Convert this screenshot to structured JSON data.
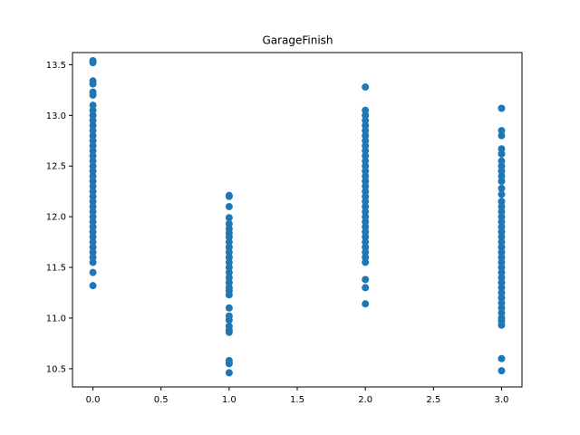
{
  "chart_data": {
    "type": "scatter",
    "title": "GarageFinish",
    "xlabel": "",
    "ylabel": "",
    "xlim": [
      -0.15,
      3.15
    ],
    "ylim": [
      10.32,
      13.62
    ],
    "x_ticks": [
      0.0,
      0.5,
      1.0,
      1.5,
      2.0,
      2.5,
      3.0
    ],
    "x_tick_labels": [
      "0.0",
      "0.5",
      "1.0",
      "1.5",
      "2.0",
      "2.5",
      "3.0"
    ],
    "y_ticks": [
      10.5,
      11.0,
      11.5,
      12.0,
      12.5,
      13.0,
      13.5
    ],
    "y_tick_labels": [
      "10.5",
      "11.0",
      "11.5",
      "12.0",
      "12.5",
      "13.0",
      "13.5"
    ],
    "grid": false,
    "marker_color": "#1f77b4",
    "series": [
      {
        "name": "GarageFinish",
        "points": [
          {
            "x": 0,
            "y": 13.54
          },
          {
            "x": 0,
            "y": 13.52
          },
          {
            "x": 0,
            "y": 13.34
          },
          {
            "x": 0,
            "y": 13.31
          },
          {
            "x": 0,
            "y": 13.23
          },
          {
            "x": 0,
            "y": 13.2
          },
          {
            "x": 0,
            "y": 13.1
          },
          {
            "x": 0,
            "y": 13.05
          },
          {
            "x": 0,
            "y": 13.0
          },
          {
            "x": 0,
            "y": 12.95
          },
          {
            "x": 0,
            "y": 12.9
          },
          {
            "x": 0,
            "y": 12.85
          },
          {
            "x": 0,
            "y": 12.8
          },
          {
            "x": 0,
            "y": 12.75
          },
          {
            "x": 0,
            "y": 12.7
          },
          {
            "x": 0,
            "y": 12.65
          },
          {
            "x": 0,
            "y": 12.6
          },
          {
            "x": 0,
            "y": 12.55
          },
          {
            "x": 0,
            "y": 12.5
          },
          {
            "x": 0,
            "y": 12.45
          },
          {
            "x": 0,
            "y": 12.4
          },
          {
            "x": 0,
            "y": 12.35
          },
          {
            "x": 0,
            "y": 12.3
          },
          {
            "x": 0,
            "y": 12.25
          },
          {
            "x": 0,
            "y": 12.2
          },
          {
            "x": 0,
            "y": 12.15
          },
          {
            "x": 0,
            "y": 12.1
          },
          {
            "x": 0,
            "y": 12.05
          },
          {
            "x": 0,
            "y": 12.0
          },
          {
            "x": 0,
            "y": 11.95
          },
          {
            "x": 0,
            "y": 11.9
          },
          {
            "x": 0,
            "y": 11.85
          },
          {
            "x": 0,
            "y": 11.8
          },
          {
            "x": 0,
            "y": 11.75
          },
          {
            "x": 0,
            "y": 11.7
          },
          {
            "x": 0,
            "y": 11.65
          },
          {
            "x": 0,
            "y": 11.6
          },
          {
            "x": 0,
            "y": 11.55
          },
          {
            "x": 0,
            "y": 11.45
          },
          {
            "x": 0,
            "y": 11.32
          },
          {
            "x": 1,
            "y": 12.21
          },
          {
            "x": 1,
            "y": 12.2
          },
          {
            "x": 1,
            "y": 12.1
          },
          {
            "x": 1,
            "y": 11.99
          },
          {
            "x": 1,
            "y": 11.93
          },
          {
            "x": 1,
            "y": 11.88
          },
          {
            "x": 1,
            "y": 11.84
          },
          {
            "x": 1,
            "y": 11.8
          },
          {
            "x": 1,
            "y": 11.75
          },
          {
            "x": 1,
            "y": 11.7
          },
          {
            "x": 1,
            "y": 11.65
          },
          {
            "x": 1,
            "y": 11.6
          },
          {
            "x": 1,
            "y": 11.55
          },
          {
            "x": 1,
            "y": 11.5
          },
          {
            "x": 1,
            "y": 11.45
          },
          {
            "x": 1,
            "y": 11.4
          },
          {
            "x": 1,
            "y": 11.35
          },
          {
            "x": 1,
            "y": 11.3
          },
          {
            "x": 1,
            "y": 11.27
          },
          {
            "x": 1,
            "y": 11.23
          },
          {
            "x": 1,
            "y": 11.1
          },
          {
            "x": 1,
            "y": 11.02
          },
          {
            "x": 1,
            "y": 10.98
          },
          {
            "x": 1,
            "y": 10.92
          },
          {
            "x": 1,
            "y": 10.88
          },
          {
            "x": 1,
            "y": 10.86
          },
          {
            "x": 1,
            "y": 10.58
          },
          {
            "x": 1,
            "y": 10.55
          },
          {
            "x": 1,
            "y": 10.46
          },
          {
            "x": 2,
            "y": 13.28
          },
          {
            "x": 2,
            "y": 13.05
          },
          {
            "x": 2,
            "y": 13.0
          },
          {
            "x": 2,
            "y": 12.95
          },
          {
            "x": 2,
            "y": 12.9
          },
          {
            "x": 2,
            "y": 12.85
          },
          {
            "x": 2,
            "y": 12.8
          },
          {
            "x": 2,
            "y": 12.75
          },
          {
            "x": 2,
            "y": 12.7
          },
          {
            "x": 2,
            "y": 12.65
          },
          {
            "x": 2,
            "y": 12.6
          },
          {
            "x": 2,
            "y": 12.55
          },
          {
            "x": 2,
            "y": 12.5
          },
          {
            "x": 2,
            "y": 12.45
          },
          {
            "x": 2,
            "y": 12.4
          },
          {
            "x": 2,
            "y": 12.35
          },
          {
            "x": 2,
            "y": 12.3
          },
          {
            "x": 2,
            "y": 12.25
          },
          {
            "x": 2,
            "y": 12.2
          },
          {
            "x": 2,
            "y": 12.15
          },
          {
            "x": 2,
            "y": 12.1
          },
          {
            "x": 2,
            "y": 12.05
          },
          {
            "x": 2,
            "y": 12.0
          },
          {
            "x": 2,
            "y": 11.95
          },
          {
            "x": 2,
            "y": 11.9
          },
          {
            "x": 2,
            "y": 11.85
          },
          {
            "x": 2,
            "y": 11.8
          },
          {
            "x": 2,
            "y": 11.75
          },
          {
            "x": 2,
            "y": 11.7
          },
          {
            "x": 2,
            "y": 11.65
          },
          {
            "x": 2,
            "y": 11.6
          },
          {
            "x": 2,
            "y": 11.55
          },
          {
            "x": 2,
            "y": 11.38
          },
          {
            "x": 2,
            "y": 11.3
          },
          {
            "x": 2,
            "y": 11.14
          },
          {
            "x": 3,
            "y": 13.07
          },
          {
            "x": 3,
            "y": 12.85
          },
          {
            "x": 3,
            "y": 12.8
          },
          {
            "x": 3,
            "y": 12.67
          },
          {
            "x": 3,
            "y": 12.62
          },
          {
            "x": 3,
            "y": 12.55
          },
          {
            "x": 3,
            "y": 12.5
          },
          {
            "x": 3,
            "y": 12.45
          },
          {
            "x": 3,
            "y": 12.4
          },
          {
            "x": 3,
            "y": 12.35
          },
          {
            "x": 3,
            "y": 12.28
          },
          {
            "x": 3,
            "y": 12.22
          },
          {
            "x": 3,
            "y": 12.15
          },
          {
            "x": 3,
            "y": 12.1
          },
          {
            "x": 3,
            "y": 12.05
          },
          {
            "x": 3,
            "y": 12.0
          },
          {
            "x": 3,
            "y": 11.95
          },
          {
            "x": 3,
            "y": 11.9
          },
          {
            "x": 3,
            "y": 11.85
          },
          {
            "x": 3,
            "y": 11.8
          },
          {
            "x": 3,
            "y": 11.75
          },
          {
            "x": 3,
            "y": 11.7
          },
          {
            "x": 3,
            "y": 11.65
          },
          {
            "x": 3,
            "y": 11.6
          },
          {
            "x": 3,
            "y": 11.55
          },
          {
            "x": 3,
            "y": 11.5
          },
          {
            "x": 3,
            "y": 11.45
          },
          {
            "x": 3,
            "y": 11.4
          },
          {
            "x": 3,
            "y": 11.35
          },
          {
            "x": 3,
            "y": 11.3
          },
          {
            "x": 3,
            "y": 11.25
          },
          {
            "x": 3,
            "y": 11.2
          },
          {
            "x": 3,
            "y": 11.15
          },
          {
            "x": 3,
            "y": 11.1
          },
          {
            "x": 3,
            "y": 11.05
          },
          {
            "x": 3,
            "y": 11.0
          },
          {
            "x": 3,
            "y": 10.97
          },
          {
            "x": 3,
            "y": 10.93
          },
          {
            "x": 3,
            "y": 10.6
          },
          {
            "x": 3,
            "y": 10.48
          }
        ]
      }
    ]
  }
}
